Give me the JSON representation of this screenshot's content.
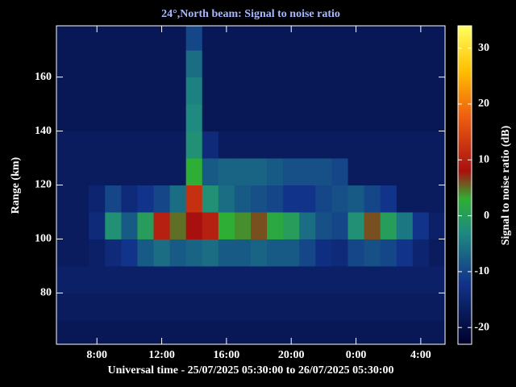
{
  "chart_data": {
    "type": "heatmap",
    "title": "24°,North beam: Signal to noise ratio",
    "xlabel": "Universal time - 25/07/2025 05:30:00 to 26/07/2025 05:30:00",
    "ylabel": "Range (km)",
    "colorbar_label": "Signal to noise ratio (dB)",
    "xlim": [
      5.5,
      29.5
    ],
    "xticks": [
      {
        "value": 8,
        "label": "8:00"
      },
      {
        "value": 12,
        "label": "12:00"
      },
      {
        "value": 16,
        "label": "16:00"
      },
      {
        "value": 20,
        "label": "20:00"
      },
      {
        "value": 24,
        "label": "0:00"
      },
      {
        "value": 28,
        "label": "4:00"
      }
    ],
    "ylim": [
      61,
      179
    ],
    "yticks": [
      80,
      100,
      120,
      140,
      160
    ],
    "zlim": [
      -23,
      34
    ],
    "zticks": [
      -20,
      -10,
      0,
      10,
      20,
      30
    ],
    "colorscale": [
      [
        -23,
        "#00002a"
      ],
      [
        -12,
        "#12338a"
      ],
      [
        -3,
        "#1e8a80"
      ],
      [
        3,
        "#2fae35"
      ],
      [
        8,
        "#a81010"
      ],
      [
        18,
        "#f06010"
      ],
      [
        26,
        "#ffc000"
      ],
      [
        34,
        "#ffff60"
      ]
    ],
    "x_bins": [
      5.5,
      6.5,
      7.5,
      8.5,
      9.5,
      10.5,
      11.5,
      12.5,
      13.5,
      14.5,
      15.5,
      16.5,
      17.5,
      18.5,
      19.5,
      20.5,
      21.5,
      22.5,
      23.5,
      24.5,
      25.5,
      26.5,
      27.5,
      28.5,
      29.5
    ],
    "y_bins": [
      60,
      70,
      80,
      90,
      100,
      110,
      120,
      130,
      140,
      150,
      160,
      170,
      180
    ],
    "values": [
      [
        -18,
        -18,
        -18,
        -18,
        -18,
        -18,
        -18,
        -18,
        -18,
        -18,
        -18,
        -18,
        -18,
        -18,
        -18,
        -18,
        -18,
        -18,
        -18,
        -18,
        -18,
        -18,
        -18,
        -18
      ],
      [
        -17,
        -17,
        -17,
        -17,
        -17,
        -17,
        -17,
        -17,
        -17,
        -17,
        -17,
        -17,
        -17,
        -17,
        -17,
        -17,
        -17,
        -17,
        -17,
        -17,
        -17,
        -17,
        -17,
        -17
      ],
      [
        -16,
        -16,
        -16,
        -16,
        -16,
        -16,
        -16,
        -16,
        -16,
        -16,
        -16,
        -16,
        -16,
        -16,
        -16,
        -16,
        -16,
        -16,
        -16,
        -16,
        -16,
        -16,
        -16,
        -16
      ],
      [
        -17,
        -17,
        -16,
        -14,
        -12,
        -8,
        -6,
        -8,
        -7,
        -6,
        -8,
        -8,
        -7,
        -8,
        -8,
        -10,
        -13,
        -14,
        -10,
        -9,
        -10,
        -12,
        -15,
        -17
      ],
      [
        -17,
        -17,
        -14,
        -2,
        -8,
        0,
        10,
        5,
        8,
        10,
        3,
        4,
        6,
        2,
        0,
        -6,
        -9,
        -10,
        -2,
        6,
        0,
        -5,
        -12,
        -16
      ],
      [
        -17,
        -17,
        -15,
        -10,
        -14,
        -12,
        -10,
        -6,
        12,
        -2,
        -6,
        -8,
        -9,
        -10,
        -12,
        -12,
        -10,
        -9,
        -8,
        -10,
        -12,
        -17,
        -17,
        -17
      ],
      [
        -17,
        -17,
        -17,
        -17,
        -17,
        -17,
        -17,
        -17,
        3,
        -8,
        -7,
        -7,
        -7,
        -8,
        -9,
        -9,
        -9,
        -10,
        -17,
        -17,
        -17,
        -17,
        -17,
        -17
      ],
      [
        -17,
        -17,
        -17,
        -17,
        -17,
        -17,
        -17,
        -17,
        -2,
        -14,
        -17,
        -17,
        -17,
        -17,
        -17,
        -17,
        -17,
        -17,
        -17,
        -17,
        -17,
        -17,
        -17,
        -17
      ],
      [
        -18,
        -18,
        -18,
        -18,
        -18,
        -18,
        -18,
        -18,
        -3,
        -18,
        -18,
        -18,
        -18,
        -18,
        -18,
        -18,
        -18,
        -18,
        -18,
        -18,
        -18,
        -18,
        -18,
        -18
      ],
      [
        -18,
        -18,
        -18,
        -18,
        -18,
        -18,
        -18,
        -18,
        -4,
        -18,
        -18,
        -18,
        -18,
        -18,
        -18,
        -18,
        -18,
        -18,
        -18,
        -18,
        -18,
        -18,
        -18,
        -18
      ],
      [
        -18,
        -18,
        -18,
        -18,
        -18,
        -18,
        -18,
        -18,
        -6,
        -18,
        -18,
        -18,
        -18,
        -18,
        -18,
        -18,
        -18,
        -18,
        -18,
        -18,
        -18,
        -18,
        -18,
        -18
      ],
      [
        -18,
        -18,
        -18,
        -18,
        -18,
        -18,
        -18,
        -18,
        -10,
        -18,
        -18,
        -18,
        -18,
        -18,
        -18,
        -18,
        -18,
        -18,
        -18,
        -18,
        -18,
        -18,
        -18,
        -18
      ]
    ]
  }
}
